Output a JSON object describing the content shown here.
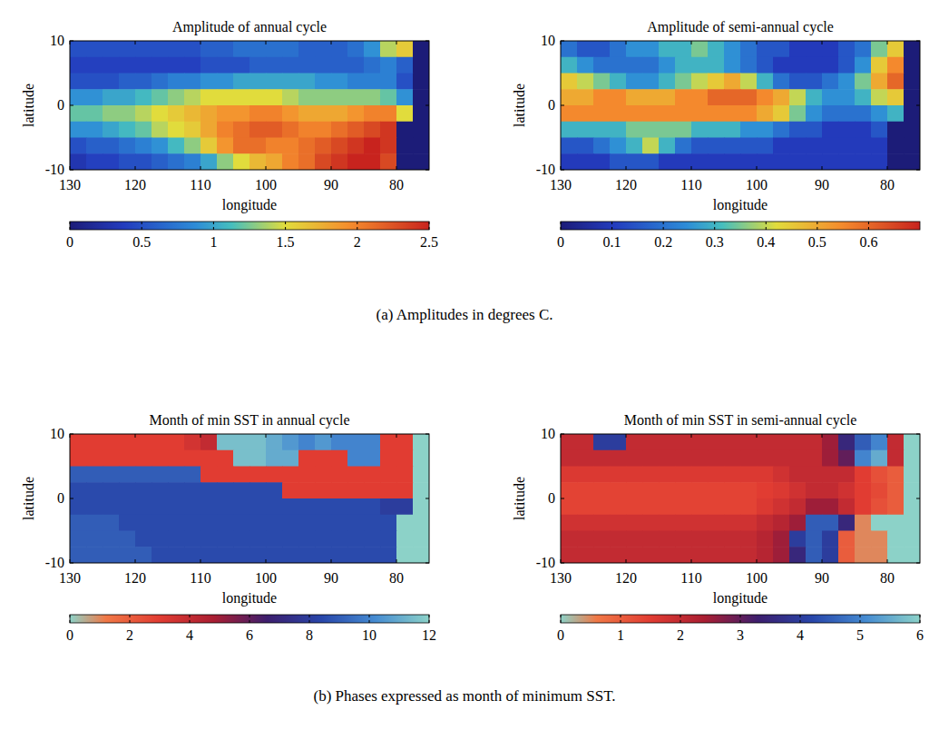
{
  "chart_data": [
    {
      "type": "heatmap",
      "title": "Amplitude of annual cycle",
      "xlabel": "longitude",
      "ylabel": "latitude",
      "xlim": [
        130,
        75
      ],
      "xticks": [
        130,
        120,
        110,
        100,
        90,
        80
      ],
      "ylim": [
        -10,
        10
      ],
      "yticks": [
        -10,
        0,
        10
      ],
      "x": [
        128.75,
        126.25,
        123.75,
        121.25,
        118.75,
        116.25,
        113.75,
        111.25,
        108.75,
        106.25,
        103.75,
        101.25,
        98.75,
        96.25,
        93.75,
        91.25,
        88.75,
        86.25,
        83.75,
        81.25,
        78.75,
        76.25
      ],
      "y": [
        8.75,
        6.25,
        3.75,
        1.25,
        -1.25,
        -3.75,
        -6.25,
        -8.75
      ],
      "cells": [
        [
          0.5,
          0.5,
          0.5,
          0.5,
          0.5,
          0.5,
          0.5,
          0.5,
          0.6,
          0.6,
          0.7,
          0.7,
          0.7,
          0.7,
          0.6,
          0.6,
          0.6,
          0.7,
          0.9,
          1.4,
          1.6,
          0
        ],
        [
          0.4,
          0.4,
          0.4,
          0.4,
          0.4,
          0.4,
          0.4,
          0.4,
          0.5,
          0.5,
          0.5,
          0.6,
          0.6,
          0.6,
          0.6,
          0.6,
          0.6,
          0.6,
          0.7,
          0.8,
          0.6,
          0
        ],
        [
          0.5,
          0.5,
          0.5,
          0.6,
          0.6,
          0.7,
          0.8,
          0.8,
          0.9,
          0.9,
          1.0,
          1.0,
          1.0,
          1.0,
          1.0,
          0.9,
          0.9,
          0.8,
          0.8,
          0.8,
          0.5,
          0
        ],
        [
          0.9,
          0.9,
          1.0,
          1.0,
          1.1,
          1.2,
          1.3,
          1.4,
          1.5,
          1.5,
          1.5,
          1.5,
          1.5,
          1.4,
          1.3,
          1.3,
          1.3,
          1.3,
          1.3,
          1.2,
          0.9,
          0
        ],
        [
          1.2,
          1.2,
          1.3,
          1.3,
          1.4,
          1.5,
          1.6,
          1.7,
          1.8,
          1.9,
          1.9,
          2.0,
          2.0,
          1.9,
          1.8,
          1.8,
          1.8,
          1.9,
          2.0,
          2.0,
          1.5,
          0
        ],
        [
          0.9,
          0.9,
          1.0,
          1.1,
          1.2,
          1.4,
          1.5,
          1.6,
          1.8,
          2.0,
          2.1,
          2.2,
          2.2,
          2.1,
          2.0,
          2.0,
          2.1,
          2.2,
          2.3,
          2.4,
          0,
          0
        ],
        [
          0.5,
          0.6,
          0.6,
          0.7,
          0.8,
          0.9,
          1.1,
          1.3,
          1.6,
          1.9,
          2.1,
          2.1,
          2.0,
          2.0,
          2.1,
          2.2,
          2.3,
          2.4,
          2.5,
          2.4,
          0,
          0
        ],
        [
          0.3,
          0.4,
          0.4,
          0.5,
          0.5,
          0.6,
          0.7,
          0.8,
          1.0,
          1.3,
          1.5,
          1.7,
          1.8,
          2.0,
          2.1,
          2.3,
          2.4,
          2.5,
          2.5,
          2.3,
          0,
          0
        ]
      ],
      "colorbar": {
        "range": [
          0,
          2.5
        ],
        "ticks": [
          0,
          0.5,
          1,
          1.5,
          2,
          2.5
        ]
      }
    },
    {
      "type": "heatmap",
      "title": "Amplitude of semi-annual cycle",
      "xlabel": "longitude",
      "ylabel": "latitude",
      "xlim": [
        130,
        75
      ],
      "xticks": [
        130,
        120,
        110,
        100,
        90,
        80
      ],
      "ylim": [
        -10,
        10
      ],
      "yticks": [
        -10,
        0,
        10
      ],
      "x": [
        128.75,
        126.25,
        123.75,
        121.25,
        118.75,
        116.25,
        113.75,
        111.25,
        108.75,
        106.25,
        103.75,
        101.25,
        98.75,
        96.25,
        93.75,
        91.25,
        88.75,
        86.25,
        83.75,
        81.25,
        78.75,
        76.25
      ],
      "y": [
        8.75,
        6.25,
        3.75,
        1.25,
        -1.25,
        -3.75,
        -6.25,
        -8.75
      ],
      "cells": [
        [
          0.2,
          0.15,
          0.15,
          0.2,
          0.25,
          0.25,
          0.3,
          0.3,
          0.35,
          0.3,
          0.25,
          0.2,
          0.15,
          0.15,
          0.1,
          0.1,
          0.1,
          0.15,
          0.2,
          0.35,
          0.45,
          0
        ],
        [
          0.3,
          0.25,
          0.2,
          0.2,
          0.2,
          0.2,
          0.25,
          0.3,
          0.3,
          0.3,
          0.25,
          0.2,
          0.15,
          0.1,
          0.1,
          0.1,
          0.1,
          0.15,
          0.25,
          0.45,
          0.55,
          0
        ],
        [
          0.45,
          0.4,
          0.35,
          0.3,
          0.25,
          0.25,
          0.3,
          0.35,
          0.4,
          0.45,
          0.5,
          0.4,
          0.3,
          0.2,
          0.15,
          0.15,
          0.2,
          0.25,
          0.35,
          0.5,
          0.6,
          0
        ],
        [
          0.5,
          0.5,
          0.55,
          0.55,
          0.5,
          0.5,
          0.5,
          0.55,
          0.55,
          0.6,
          0.6,
          0.6,
          0.55,
          0.5,
          0.4,
          0.3,
          0.25,
          0.25,
          0.3,
          0.4,
          0.45,
          0
        ],
        [
          0.55,
          0.55,
          0.55,
          0.55,
          0.55,
          0.55,
          0.55,
          0.55,
          0.55,
          0.55,
          0.55,
          0.55,
          0.5,
          0.45,
          0.35,
          0.25,
          0.2,
          0.2,
          0.2,
          0.25,
          0.3,
          0
        ],
        [
          0.3,
          0.3,
          0.3,
          0.3,
          0.35,
          0.35,
          0.35,
          0.35,
          0.3,
          0.3,
          0.3,
          0.25,
          0.25,
          0.2,
          0.15,
          0.15,
          0.1,
          0.1,
          0.1,
          0.15,
          0,
          0
        ],
        [
          0.15,
          0.15,
          0.2,
          0.25,
          0.3,
          0.4,
          0.3,
          0.2,
          0.15,
          0.15,
          0.15,
          0.15,
          0.15,
          0.1,
          0.1,
          0.1,
          0.1,
          0.1,
          0.1,
          0.1,
          0,
          0
        ],
        [
          0.1,
          0.1,
          0.1,
          0.15,
          0.15,
          0.15,
          0.1,
          0.1,
          0.1,
          0.1,
          0.1,
          0.1,
          0.1,
          0.1,
          0.1,
          0.1,
          0.1,
          0.1,
          0.1,
          0.1,
          0,
          0
        ]
      ],
      "colorbar": {
        "range": [
          0,
          0.7
        ],
        "ticks": [
          0,
          0.1,
          0.2,
          0.3,
          0.4,
          0.5,
          0.6
        ]
      }
    },
    {
      "type": "heatmap",
      "title": "Month of min SST in annual cycle",
      "xlabel": "longitude",
      "ylabel": "latitude",
      "xlim": [
        130,
        75
      ],
      "xticks": [
        130,
        120,
        110,
        100,
        90,
        80
      ],
      "ylim": [
        -10,
        10
      ],
      "yticks": [
        -10,
        0,
        10
      ],
      "x": [
        128.75,
        126.25,
        123.75,
        121.25,
        118.75,
        116.25,
        113.75,
        111.25,
        108.75,
        106.25,
        103.75,
        101.25,
        98.75,
        96.25,
        93.75,
        91.25,
        88.75,
        86.25,
        83.75,
        81.25,
        78.75,
        76.25
      ],
      "y": [
        8.75,
        6.25,
        3.75,
        1.25,
        -1.25,
        -3.75,
        -6.25,
        -8.75
      ],
      "cells": [
        [
          3,
          3,
          3,
          3,
          3,
          3,
          3,
          3.5,
          4,
          11.5,
          11.5,
          11.5,
          11,
          10.5,
          10,
          10.5,
          10,
          10,
          10,
          3,
          3,
          0
        ],
        [
          3,
          3,
          3,
          3,
          3,
          3,
          3,
          3,
          3,
          3,
          11.5,
          11.5,
          11,
          11,
          3,
          3,
          3,
          10,
          10,
          3,
          3,
          0
        ],
        [
          9,
          9,
          9,
          9,
          9,
          9,
          9,
          9,
          3,
          3,
          3,
          3,
          3,
          3,
          3,
          3,
          3,
          3,
          3,
          3,
          3,
          0
        ],
        [
          8.5,
          8.5,
          8.5,
          8.5,
          8.5,
          8.5,
          8.5,
          8.5,
          8.5,
          8.5,
          8.5,
          8.5,
          8.5,
          3,
          3,
          3,
          3,
          3,
          3,
          3,
          3,
          0
        ],
        [
          8.5,
          8.5,
          8.5,
          8.5,
          8.5,
          8.5,
          8.5,
          8.5,
          8.5,
          8.5,
          8.5,
          8.5,
          8.5,
          8.5,
          8.5,
          8.5,
          8.5,
          8.5,
          8.5,
          8,
          8,
          0
        ],
        [
          9,
          9,
          9,
          8.5,
          8.5,
          8.5,
          8.5,
          8.5,
          8.5,
          8.5,
          8.5,
          8.5,
          8.5,
          8.5,
          8.5,
          8.5,
          8.5,
          8.5,
          8.5,
          8.5,
          0,
          0
        ],
        [
          9,
          9,
          9,
          9,
          8.5,
          8.5,
          8.5,
          8.5,
          8.5,
          8.5,
          8.5,
          8.5,
          8.5,
          8.5,
          8.5,
          8.5,
          8.5,
          8.5,
          8.5,
          8.5,
          0,
          0
        ],
        [
          9,
          9,
          9,
          9,
          9,
          8.5,
          8.5,
          8.5,
          8.5,
          8.5,
          8.5,
          8.5,
          8.5,
          8.5,
          8.5,
          8.5,
          8.5,
          8.5,
          8.5,
          8.5,
          0,
          0
        ]
      ],
      "colorbar": {
        "range": [
          0,
          12
        ],
        "ticks": [
          0,
          2,
          4,
          6,
          8,
          10,
          12
        ]
      }
    },
    {
      "type": "heatmap",
      "title": "Month of min SST in semi-annual cycle",
      "xlabel": "longitude",
      "ylabel": "latitude",
      "xlim": [
        130,
        75
      ],
      "xticks": [
        130,
        120,
        110,
        100,
        90,
        80
      ],
      "ylim": [
        -10,
        10
      ],
      "yticks": [
        -10,
        0,
        10
      ],
      "x": [
        128.75,
        126.25,
        123.75,
        121.25,
        118.75,
        116.25,
        113.75,
        111.25,
        108.75,
        106.25,
        103.75,
        101.25,
        98.75,
        96.25,
        93.75,
        91.25,
        88.75,
        86.25,
        83.75,
        81.25,
        78.75,
        76.25
      ],
      "y": [
        8.75,
        6.25,
        3.75,
        1.25,
        -1.25,
        -3.75,
        -6.25,
        -8.75
      ],
      "cells": [
        [
          2,
          2,
          4,
          4,
          2,
          2,
          2,
          2,
          2,
          2,
          2,
          2,
          2,
          2,
          2,
          2,
          2.5,
          3.5,
          4.5,
          5,
          2,
          0
        ],
        [
          2,
          2,
          2,
          2,
          2,
          2,
          2,
          2,
          2,
          2,
          2,
          2,
          2,
          2,
          2,
          2,
          2.5,
          3,
          5,
          5.5,
          2,
          0
        ],
        [
          1.6,
          1.6,
          1.6,
          1.6,
          1.6,
          1.6,
          1.6,
          1.6,
          1.6,
          1.6,
          1.6,
          1.6,
          1.6,
          1.8,
          2,
          2,
          2,
          2,
          1.5,
          1.2,
          1,
          0
        ],
        [
          1.4,
          1.4,
          1.4,
          1.4,
          1.4,
          1.4,
          1.4,
          1.4,
          1.4,
          1.4,
          1.4,
          1.4,
          1.5,
          1.6,
          1.8,
          2,
          2,
          1.8,
          1.5,
          1.3,
          1,
          0
        ],
        [
          1.4,
          1.4,
          1.4,
          1.4,
          1.4,
          1.4,
          1.4,
          1.4,
          1.4,
          1.4,
          1.4,
          1.4,
          1.6,
          1.8,
          2,
          2.5,
          2.5,
          2,
          1.5,
          1.2,
          1,
          0
        ],
        [
          1.8,
          1.8,
          1.8,
          1.8,
          1.8,
          1.8,
          1.8,
          1.8,
          1.8,
          1.8,
          1.8,
          1.8,
          2,
          2.2,
          2.5,
          4.5,
          4.5,
          3.5,
          0.5,
          0,
          0,
          0
        ],
        [
          2,
          2,
          2,
          2,
          2,
          2,
          2,
          2,
          2,
          2,
          2,
          2,
          2.2,
          2.5,
          4,
          4.5,
          4,
          1,
          0.5,
          0.5,
          0,
          0
        ],
        [
          2,
          2,
          2,
          2,
          2,
          2,
          2,
          2,
          2,
          2,
          2,
          2,
          2.2,
          2.5,
          3.5,
          4.5,
          4,
          1,
          0.5,
          0.5,
          0,
          0
        ]
      ],
      "colorbar": {
        "range": [
          0,
          6
        ],
        "ticks": [
          0,
          1,
          2,
          3,
          4,
          5,
          6
        ]
      }
    }
  ],
  "captions": [
    "(a) Amplitudes in degrees C.",
    "(b) Phases expressed as month of minimum SST."
  ]
}
